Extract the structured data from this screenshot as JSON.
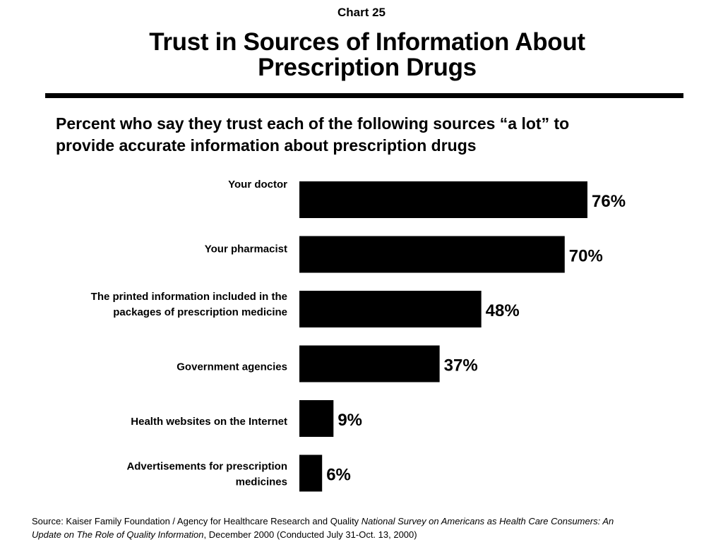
{
  "header": {
    "chart_number": "Chart 25",
    "title_line1": "Trust in Sources of Information About",
    "title_line2": "Prescription Drugs",
    "subtitle_line1": "Percent who say they trust each of the following sources “a lot” to",
    "subtitle_line2": "provide accurate information about prescription drugs"
  },
  "chart_data": {
    "type": "bar",
    "orientation": "horizontal",
    "categories": [
      [
        "Your doctor"
      ],
      [
        "Your pharmacist"
      ],
      [
        "The printed information included in the",
        "packages of prescription medicine"
      ],
      [
        "Government agencies"
      ],
      [
        "Health websites on the Internet"
      ],
      [
        "Advertisements for prescription",
        "medicines"
      ]
    ],
    "values": [
      76,
      70,
      48,
      37,
      9,
      6
    ],
    "value_labels": [
      "76%",
      "70%",
      "48%",
      "37%",
      "9%",
      "6%"
    ],
    "bar_color": "#000000",
    "xlim": [
      0,
      100
    ],
    "grid": false,
    "legend": "none"
  },
  "footer": {
    "source_plain": "Source: Kaiser Family Foundation / Agency for Healthcare Research and Quality ",
    "source_italic_1": "National Survey on Americans as Health Care Consumers:  An",
    "source_italic_2": "Update on The Role of Quality Information",
    "source_tail": ", December 2000 (Conducted July 31-Oct. 13, 2000)"
  }
}
